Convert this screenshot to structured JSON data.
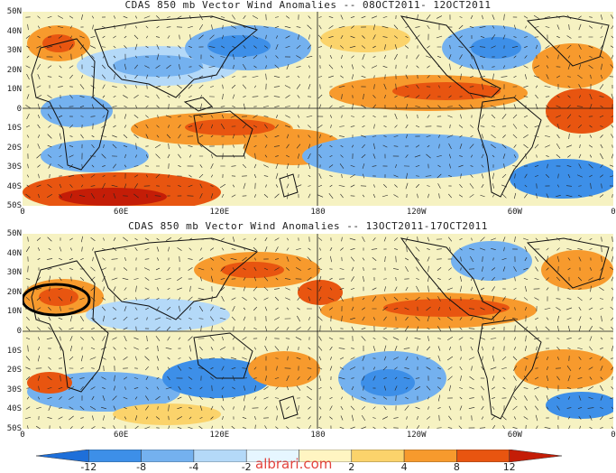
{
  "panels": [
    {
      "title": "CDAS 850 mb Vector Wind Anomalies -- 08OCT2011- 12OCT2011"
    },
    {
      "title": "CDAS 850 mb Vector Wind Anomalies -- 13OCT2011-17OCT2011"
    }
  ],
  "lat_labels": [
    "50N",
    "40N",
    "30N",
    "20N",
    "10N",
    "0",
    "10S",
    "20S",
    "30S",
    "40S",
    "50S"
  ],
  "lon_labels": [
    "0",
    "60E",
    "120E",
    "180",
    "120W",
    "60W",
    "0"
  ],
  "colorbar": {
    "labels": [
      "-12",
      "-8",
      "-4",
      "-2",
      "2",
      "4",
      "8",
      "12"
    ],
    "colors": [
      "#1e6fd9",
      "#3d8fe8",
      "#74b1ef",
      "#b4d9f8",
      "#e6f6ff",
      "#fff5c2",
      "#fbd36b",
      "#f79a2d",
      "#e85510",
      "#c41d07"
    ]
  },
  "watermark": "albrari.com"
}
